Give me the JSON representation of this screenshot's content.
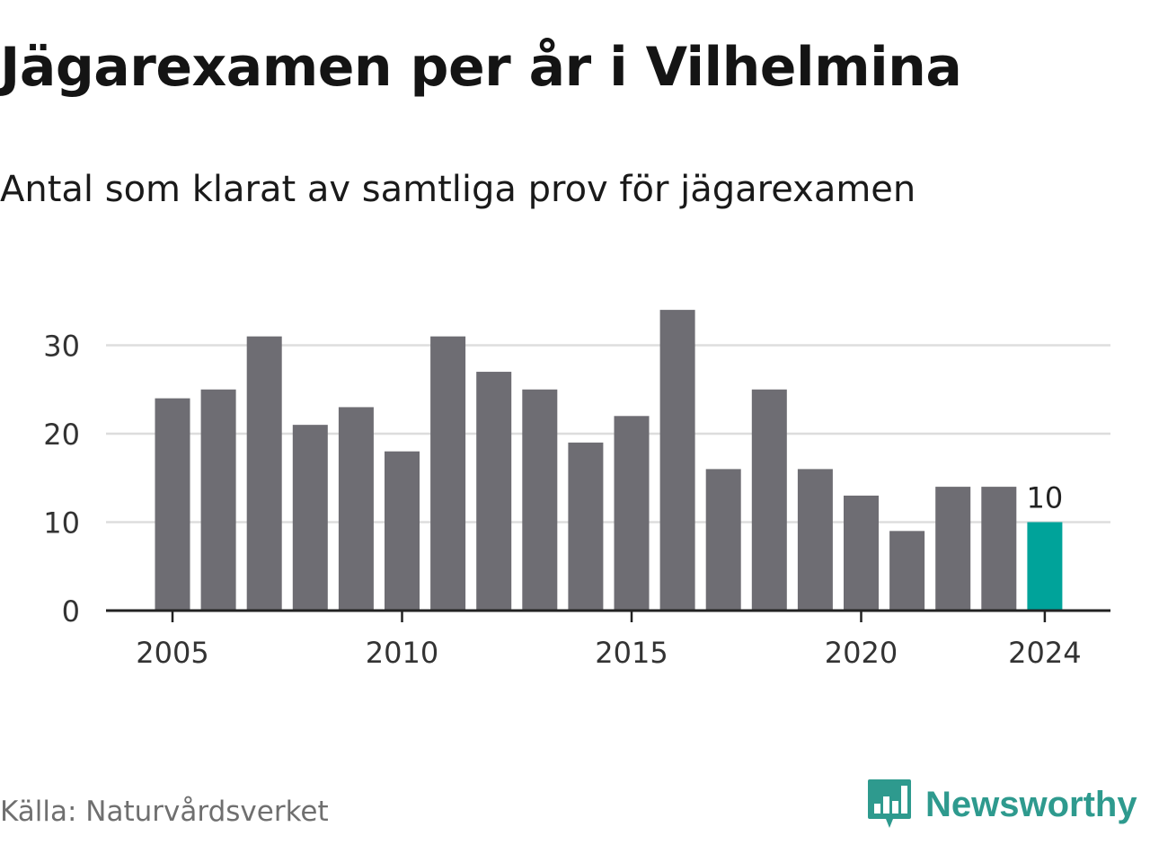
{
  "header": {
    "title": "Jägarexamen per år i Vilhelmina",
    "subtitle": "Antal som klarat av samtliga prov för jägarexamen"
  },
  "footer": {
    "source": "Källa: Naturvårdsverket",
    "brand": "Newsworthy",
    "brand_icon": "newsworthy-logo-icon"
  },
  "colors": {
    "bar": "#6e6d73",
    "highlight": "#00a39a",
    "grid": "#dddddd",
    "axis": "#222222",
    "brand": "#2e9a8e"
  },
  "chart_data": {
    "type": "bar",
    "title": "Jägarexamen per år i Vilhelmina",
    "subtitle": "Antal som klarat av samtliga prov för jägarexamen",
    "xlabel": "",
    "ylabel": "",
    "categories": [
      2005,
      2006,
      2007,
      2008,
      2009,
      2010,
      2011,
      2012,
      2013,
      2014,
      2015,
      2016,
      2017,
      2018,
      2019,
      2020,
      2021,
      2022,
      2023,
      2024
    ],
    "values": [
      24,
      25,
      31,
      21,
      23,
      18,
      31,
      27,
      25,
      19,
      22,
      34,
      16,
      25,
      16,
      13,
      9,
      14,
      14,
      10
    ],
    "x_tick_labels": [
      "2005",
      "2010",
      "2015",
      "2020",
      "2024"
    ],
    "y_ticks": [
      0,
      10,
      20,
      30
    ],
    "ylim": [
      0,
      35
    ],
    "grid": true,
    "legend": "none",
    "highlight": {
      "category": 2024,
      "label": "10"
    }
  }
}
